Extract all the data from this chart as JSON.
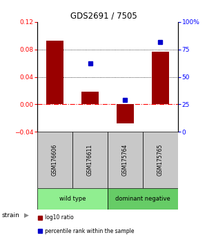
{
  "title": "GDS2691 / 7505",
  "samples": [
    "GSM176606",
    "GSM176611",
    "GSM175764",
    "GSM175765"
  ],
  "log10_ratio": [
    0.093,
    0.018,
    -0.028,
    0.077
  ],
  "percentile_rank": [
    null,
    62,
    29,
    82
  ],
  "groups": [
    {
      "label": "wild type",
      "samples": [
        0,
        1
      ],
      "color": "#90ee90"
    },
    {
      "label": "dominant negative",
      "samples": [
        2,
        3
      ],
      "color": "#66cc66"
    }
  ],
  "bar_color": "#990000",
  "dot_color": "#0000cc",
  "ylim_left": [
    -0.04,
    0.12
  ],
  "ylim_right": [
    0,
    100
  ],
  "yticks_left": [
    -0.04,
    0,
    0.04,
    0.08,
    0.12
  ],
  "yticks_right": [
    0,
    25,
    50,
    75,
    100
  ],
  "hlines": [
    0.08,
    0.04
  ],
  "background_color": "#ffffff",
  "sample_box_color": "#c8c8c8",
  "strain_label": "strain",
  "legend_items": [
    {
      "label": "log10 ratio",
      "color": "#990000"
    },
    {
      "label": "percentile rank within the sample",
      "color": "#0000cc"
    }
  ]
}
